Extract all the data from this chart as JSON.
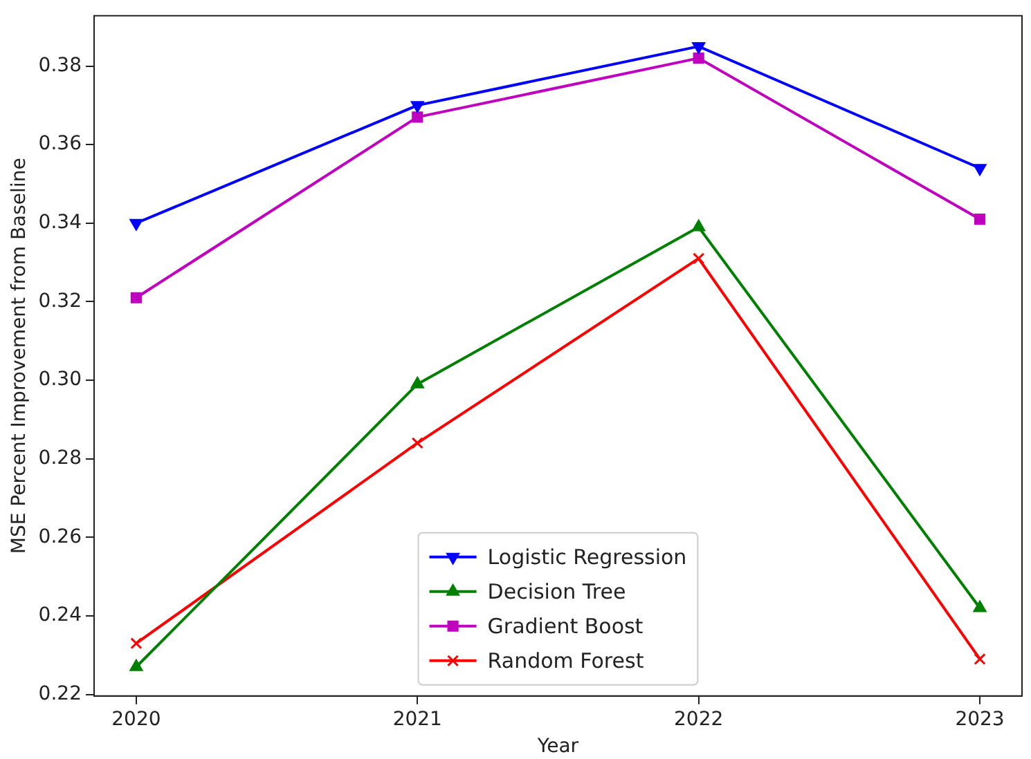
{
  "chart_data": {
    "type": "line",
    "xlabel": "Year",
    "ylabel": "MSE Percent Improvement from Baseline",
    "x": [
      2020,
      2021,
      2022,
      2023
    ],
    "xlim": [
      2019.85,
      2023.15
    ],
    "xticks": [
      2020,
      2021,
      2022,
      2023
    ],
    "ylim": [
      0.2196,
      0.3928
    ],
    "yticks": [
      {
        "value": 0.22,
        "label": "0.22"
      },
      {
        "value": 0.24,
        "label": "0.24"
      },
      {
        "value": 0.26,
        "label": "0.26"
      },
      {
        "value": 0.28,
        "label": "0.28"
      },
      {
        "value": 0.3,
        "label": "0.30"
      },
      {
        "value": 0.32,
        "label": "0.32"
      },
      {
        "value": 0.34,
        "label": "0.34"
      },
      {
        "value": 0.36,
        "label": "0.36"
      },
      {
        "value": 0.38,
        "label": "0.38"
      }
    ],
    "grid": false,
    "legend": "bottom",
    "line_style": "solid",
    "series": [
      {
        "name": "Logistic Regression",
        "color": "#0000ff",
        "marker": "triangle_down",
        "values": [
          0.34,
          0.37,
          0.385,
          0.354
        ]
      },
      {
        "name": "Decision Tree",
        "color": "#008000",
        "marker": "triangle",
        "values": [
          0.227,
          0.299,
          0.339,
          0.242
        ]
      },
      {
        "name": "Gradient Boost",
        "color": "#bf00bf",
        "marker": "square",
        "values": [
          0.321,
          0.367,
          0.382,
          0.341
        ]
      },
      {
        "name": "Random Forest",
        "color": "#ff0000",
        "marker": "cross",
        "values": [
          0.233,
          0.284,
          0.331,
          0.229
        ]
      }
    ]
  }
}
